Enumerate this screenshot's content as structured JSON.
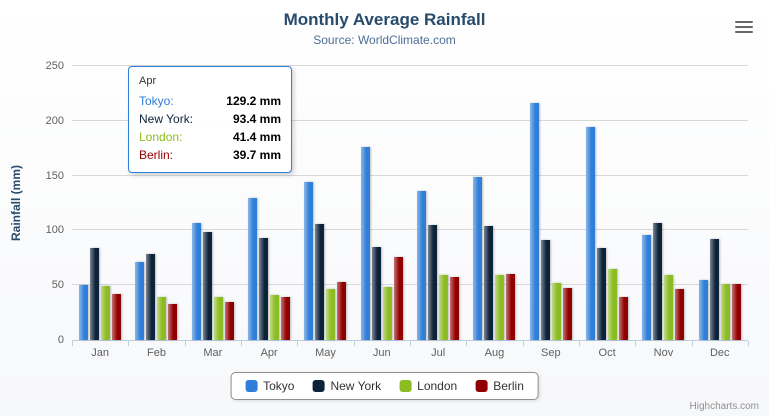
{
  "header": {
    "title": "Monthly Average Rainfall",
    "subtitle": "Source: WorldClimate.com"
  },
  "chart_data": {
    "type": "bar",
    "title": "Monthly Average Rainfall",
    "subtitle": "Source: WorldClimate.com",
    "xlabel": "",
    "ylabel": "Rainfall (mm)",
    "ylim": [
      0,
      250
    ],
    "yticks": [
      0,
      50,
      100,
      150,
      200,
      250
    ],
    "grid": true,
    "legend_position": "bottom",
    "categories": [
      "Jan",
      "Feb",
      "Mar",
      "Apr",
      "May",
      "Jun",
      "Jul",
      "Aug",
      "Sep",
      "Oct",
      "Nov",
      "Dec"
    ],
    "series": [
      {
        "name": "Tokyo",
        "color": "#2f7ed8",
        "values": [
          49.9,
          71.5,
          106.4,
          129.2,
          144.0,
          176.0,
          135.6,
          148.5,
          216.4,
          194.1,
          95.6,
          54.4
        ]
      },
      {
        "name": "New York",
        "color": "#0d233a",
        "values": [
          83.6,
          78.8,
          98.5,
          93.4,
          106.0,
          84.5,
          105.0,
          104.3,
          91.2,
          83.5,
          106.6,
          92.3
        ]
      },
      {
        "name": "London",
        "color": "#8bbc21",
        "values": [
          48.9,
          38.8,
          39.3,
          41.4,
          47.0,
          48.3,
          59.0,
          59.6,
          52.4,
          65.2,
          59.3,
          51.2
        ]
      },
      {
        "name": "Berlin",
        "color": "#910000",
        "values": [
          42.4,
          33.2,
          34.5,
          39.7,
          52.6,
          75.5,
          57.4,
          60.4,
          47.6,
          39.1,
          46.8,
          51.1
        ]
      }
    ]
  },
  "tooltip": {
    "header": "Apr",
    "border_color": "#2f7ed8",
    "rows": [
      {
        "label": "Tokyo:",
        "value": "129.2 mm",
        "color": "#2f7ed8"
      },
      {
        "label": "New York:",
        "value": "93.4 mm",
        "color": "#0d233a"
      },
      {
        "label": "London:",
        "value": "41.4 mm",
        "color": "#8bbc21"
      },
      {
        "label": "Berlin:",
        "value": "39.7 mm",
        "color": "#910000"
      }
    ]
  },
  "icons": {
    "export_menu": "hamburger"
  },
  "credits": {
    "label": "Highcharts.com"
  }
}
